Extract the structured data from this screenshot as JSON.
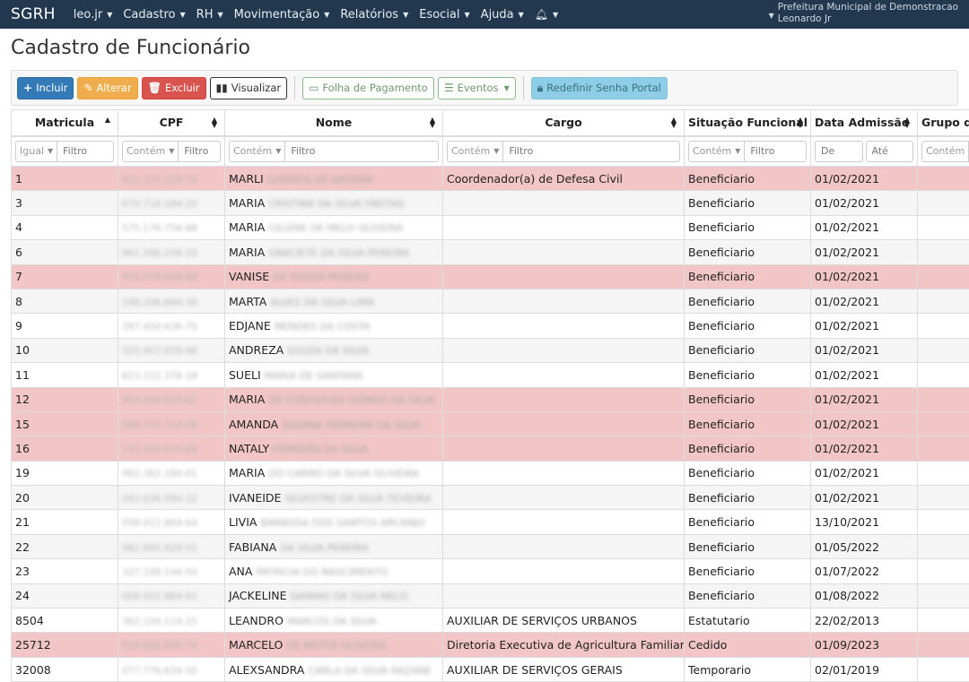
{
  "nav": {
    "brand": "SGRH",
    "menus": [
      "leo.jr",
      "Cadastro",
      "RH",
      "Movimentação",
      "Relatórios",
      "Esocial",
      "Ajuda"
    ],
    "org": "Prefeitura Municipal de Demonstracao",
    "user": "Leonardo Jr"
  },
  "page": {
    "title": "Cadastro de Funcionário"
  },
  "toolbar": {
    "incluir": "Incluir",
    "alterar": "Alterar",
    "excluir": "Excluir",
    "visualizar": "Visualizar",
    "folha": "Folha de Pagamento",
    "eventos": "Eventos",
    "redefinir": "Redefinir Senha Portal"
  },
  "table": {
    "headers": [
      "Matricula",
      "CPF",
      "Nome",
      "Cargo",
      "Situação Funcional",
      "Data Admissão",
      "Grupo d"
    ],
    "filters": {
      "igual": "Igual",
      "contem": "Contém",
      "filtro": "Filtro",
      "de": "De",
      "ate": "Até"
    },
    "rows": [
      {
        "mat": "1",
        "cpf": "912.321.129-70",
        "nome": "MARLI",
        "rest": "CORREIA DE AMORIM",
        "cargo": "Coordenador(a) de Defesa Civil",
        "sit": "Beneficiario",
        "adm": "01/02/2021",
        "hl": true
      },
      {
        "mat": "3",
        "cpf": "679.716.284-20",
        "nome": "MARIA",
        "rest": "CRISTINA DA SILVA FREITAS",
        "cargo": "",
        "sit": "Beneficiario",
        "adm": "01/02/2021",
        "hl": false
      },
      {
        "mat": "4",
        "cpf": "575.176.758-88",
        "nome": "MARIA",
        "rest": "CELENE DE MELO OLIVEIRA",
        "cargo": "",
        "sit": "Beneficiario",
        "adm": "01/02/2021",
        "hl": false
      },
      {
        "mat": "6",
        "cpf": "961.586.258-10",
        "nome": "MARIA",
        "rest": "GRACIETE DA SILVA PEREIRA",
        "cargo": "",
        "sit": "Beneficiario",
        "adm": "01/02/2021",
        "hl": false
      },
      {
        "mat": "7",
        "cpf": "916.078.908-68",
        "nome": "VANISE",
        "rest": "DE SOUZA PEREIRA",
        "cargo": "",
        "sit": "Beneficiario",
        "adm": "01/02/2021",
        "hl": true
      },
      {
        "mat": "8",
        "cpf": "198.206.669-30",
        "nome": "MARTA",
        "rest": "ALVES DA SILVA LIMA",
        "cargo": "",
        "sit": "Beneficiario",
        "adm": "01/02/2021",
        "hl": false
      },
      {
        "mat": "9",
        "cpf": "397.458.636-70",
        "nome": "EDJANE",
        "rest": "MENDES DA COSTA",
        "cargo": "",
        "sit": "Beneficiario",
        "adm": "01/02/2021",
        "hl": false
      },
      {
        "mat": "10",
        "cpf": "325.907.659-96",
        "nome": "ANDREZA",
        "rest": "SOUZA DA SILVA",
        "cargo": "",
        "sit": "Beneficiario",
        "adm": "01/02/2021",
        "hl": false
      },
      {
        "mat": "11",
        "cpf": "613.212.378-18",
        "nome": "SUELI",
        "rest": "MARIA DE SANTANA",
        "cargo": "",
        "sit": "Beneficiario",
        "adm": "01/02/2021",
        "hl": false
      },
      {
        "mat": "12",
        "cpf": "953.998.624-82",
        "nome": "MARIA",
        "rest": "DA CONCEICAO SOARES DA SILVA",
        "cargo": "",
        "sit": "Beneficiario",
        "adm": "01/02/2021",
        "hl": true
      },
      {
        "mat": "15",
        "cpf": "598.771.714-08",
        "nome": "AMANDA",
        "rest": "SUEANA FERREIRA DA SILVA",
        "cargo": "",
        "sit": "Beneficiario",
        "adm": "01/02/2021",
        "hl": true
      },
      {
        "mat": "16",
        "cpf": "115.265.614-80",
        "nome": "NATALY",
        "rest": "FERREIRA DA SILVA",
        "cargo": "",
        "sit": "Beneficiario",
        "adm": "01/02/2021",
        "hl": true
      },
      {
        "mat": "19",
        "cpf": "062.362.184-01",
        "nome": "MARIA",
        "rest": "DO CARMO DA SILVA OLIVEIRA",
        "cargo": "",
        "sit": "Beneficiario",
        "adm": "01/02/2021",
        "hl": false
      },
      {
        "mat": "20",
        "cpf": "043.636.094-22",
        "nome": "IVANEIDE",
        "rest": "SILVESTRE DA SILVA TEIXEIRA",
        "cargo": "",
        "sit": "Beneficiario",
        "adm": "01/02/2021",
        "hl": false
      },
      {
        "mat": "21",
        "cpf": "058.912.864-64",
        "nome": "LIVIA",
        "rest": "BARBOSA DOS SANTOS ARCANJO",
        "cargo": "",
        "sit": "Beneficiario",
        "adm": "13/10/2021",
        "hl": false
      },
      {
        "mat": "22",
        "cpf": "082.665.829-01",
        "nome": "FABIANA",
        "rest": "DA SILVA PEREIRA",
        "cargo": "",
        "sit": "Beneficiario",
        "adm": "01/05/2022",
        "hl": false
      },
      {
        "mat": "23",
        "cpf": "327.198.144-50",
        "nome": "ANA",
        "rest": "PATRICIA DO NASCIMENTO",
        "cargo": "",
        "sit": "Beneficiario",
        "adm": "01/07/2022",
        "hl": false
      },
      {
        "mat": "24",
        "cpf": "008.052.884-61",
        "nome": "JACKELINE",
        "rest": "DAMIAO DA SILVA MELO",
        "cargo": "",
        "sit": "Beneficiario",
        "adm": "01/08/2022",
        "hl": false
      },
      {
        "mat": "8504",
        "cpf": "362.156.114-25",
        "nome": "LEANDRO",
        "rest": "MARCOS DA SILVA",
        "cargo": "AUXILIAR DE SERVIÇOS URBANOS",
        "sit": "Estatutario",
        "adm": "22/02/2013",
        "hl": false
      },
      {
        "mat": "25712",
        "cpf": "028.026.658-70",
        "nome": "MARCELO",
        "rest": "DE MOTTA OLIVEIRA",
        "cargo": "Diretoria Executiva de Agricultura Familiar",
        "sit": "Cedido",
        "adm": "01/09/2023",
        "hl": true
      },
      {
        "mat": "32008",
        "cpf": "077.776.634-50",
        "nome": "ALEXSANDRA",
        "rest": "CARLA DA SILVA RAZANE",
        "cargo": "AUXILIAR DE SERVIÇOS GERAIS",
        "sit": "Temporario",
        "adm": "02/01/2019",
        "hl": false
      }
    ]
  }
}
